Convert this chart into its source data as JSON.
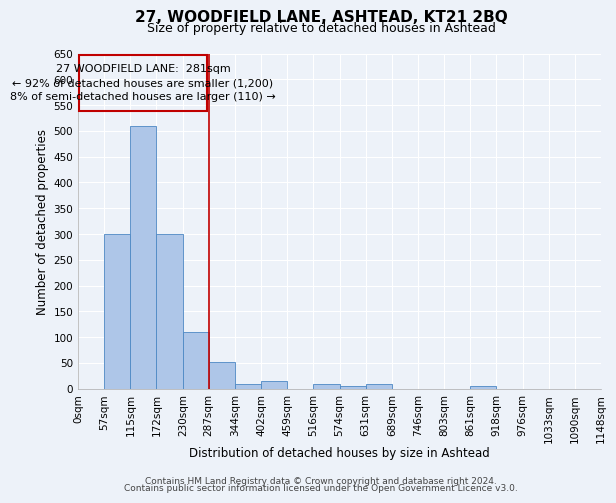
{
  "title": "27, WOODFIELD LANE, ASHTEAD, KT21 2BQ",
  "subtitle": "Size of property relative to detached houses in Ashtead",
  "xlabel": "Distribution of detached houses by size in Ashtead",
  "ylabel": "Number of detached properties",
  "bin_edges": [
    0,
    57,
    115,
    172,
    230,
    287,
    344,
    402,
    459,
    516,
    574,
    631,
    689,
    746,
    803,
    861,
    918,
    976,
    1033,
    1090,
    1148
  ],
  "bin_labels": [
    "0sqm",
    "57sqm",
    "115sqm",
    "172sqm",
    "230sqm",
    "287sqm",
    "344sqm",
    "402sqm",
    "459sqm",
    "516sqm",
    "574sqm",
    "631sqm",
    "689sqm",
    "746sqm",
    "803sqm",
    "861sqm",
    "918sqm",
    "976sqm",
    "1033sqm",
    "1090sqm",
    "1148sqm"
  ],
  "counts": [
    0,
    300,
    510,
    300,
    110,
    52,
    10,
    15,
    0,
    10,
    5,
    10,
    0,
    0,
    0,
    5,
    0,
    0,
    0,
    0
  ],
  "bar_color": "#aec6e8",
  "bar_edge_color": "#4d88c4",
  "property_line_x": 287,
  "property_line_color": "#c00000",
  "annotation_line1": "27 WOODFIELD LANE:  281sqm",
  "annotation_line2": "← 92% of detached houses are smaller (1,200)",
  "annotation_line3": "8% of semi-detached houses are larger (110) →",
  "annotation_box_color": "#c00000",
  "ylim": [
    0,
    650
  ],
  "yticks": [
    0,
    50,
    100,
    150,
    200,
    250,
    300,
    350,
    400,
    450,
    500,
    550,
    600,
    650
  ],
  "footer_line1": "Contains HM Land Registry data © Crown copyright and database right 2024.",
  "footer_line2": "Contains public sector information licensed under the Open Government Licence v3.0.",
  "background_color": "#edf2f9",
  "plot_bg_color": "#edf2f9",
  "grid_color": "#ffffff",
  "title_fontsize": 11,
  "subtitle_fontsize": 9,
  "axis_label_fontsize": 8.5,
  "tick_fontsize": 7.5,
  "annotation_fontsize": 8,
  "footer_fontsize": 6.5
}
